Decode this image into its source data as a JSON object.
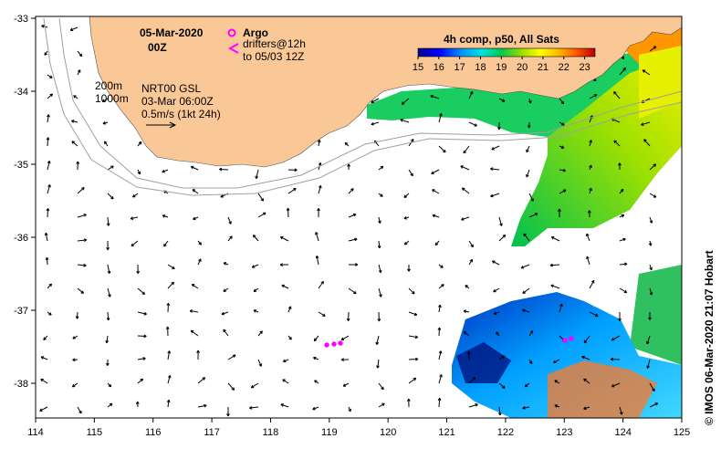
{
  "title": {
    "date": "05-Mar-2020",
    "time": "00Z"
  },
  "legend_obs": {
    "argo_label": "Argo",
    "drifters_label": "drifters@12h",
    "drifters_to": "to 05/03 12Z"
  },
  "depth_contours": {
    "shallow": "200m",
    "deep": "1000m"
  },
  "analysis": {
    "product": "NRT00 GSL",
    "valid": "03-Mar 06:00Z",
    "scale_label": "0.5m/s (1kt 24h)"
  },
  "colorbar": {
    "title": "4h comp, p50, All Sats",
    "ticks": [
      "15",
      "16",
      "17",
      "18",
      "19",
      "20",
      "21",
      "22",
      "23"
    ],
    "min": 15,
    "max": 23.5
  },
  "axes": {
    "lon_ticks": [
      "114",
      "115",
      "116",
      "117",
      "118",
      "119",
      "120",
      "121",
      "122",
      "123",
      "124",
      "125"
    ],
    "lat_ticks": [
      "-33",
      "-34",
      "-35",
      "-36",
      "-37",
      "-38"
    ]
  },
  "credit": "© IMOS 06-Mar-2020 21:07 Hobart",
  "colors": {
    "land": "#fac896",
    "argo": "#ff00ff",
    "contour": "#a0a0a0"
  }
}
